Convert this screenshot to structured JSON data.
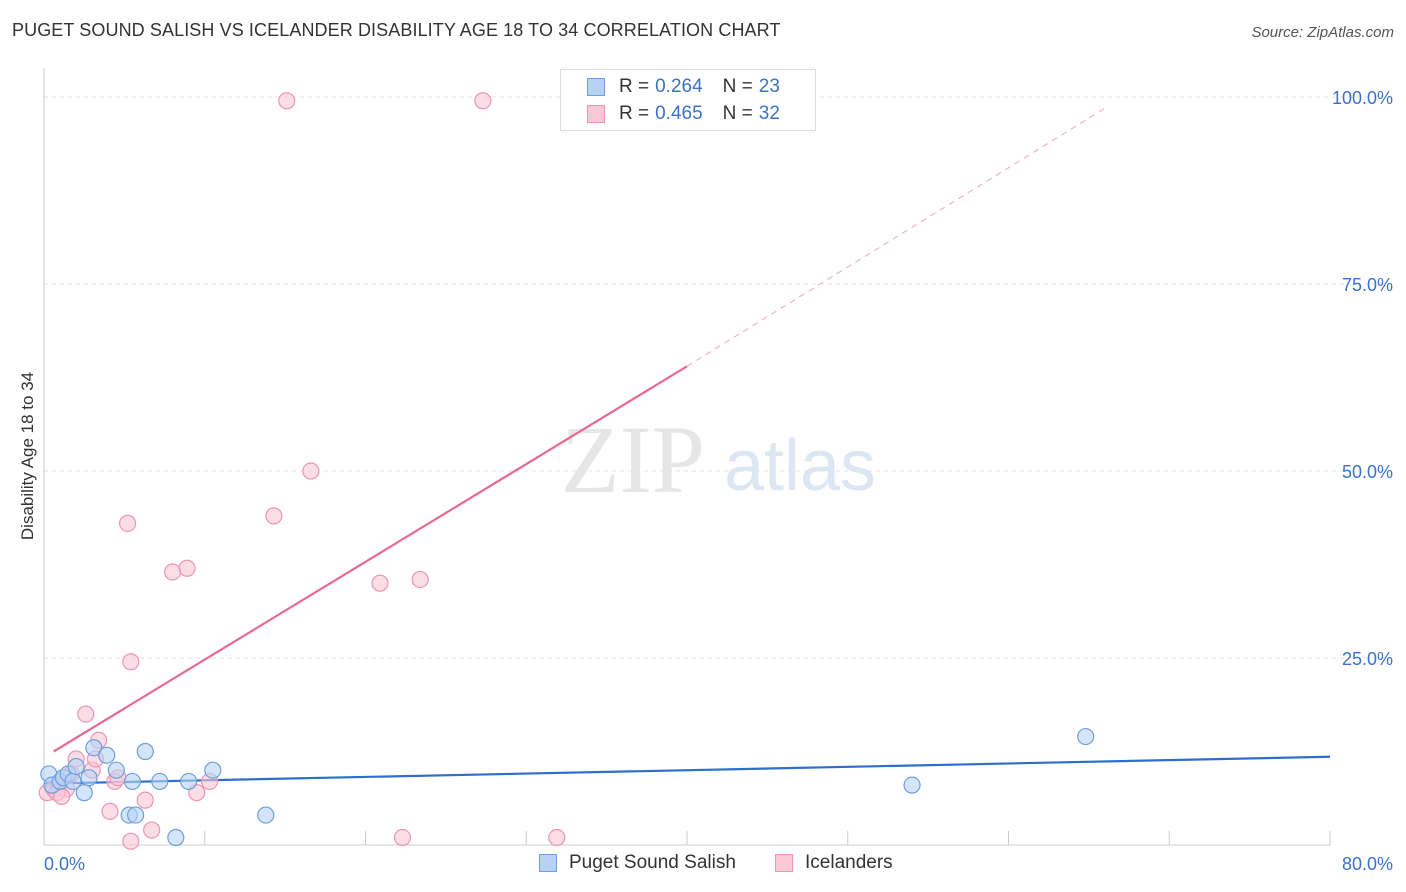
{
  "header": {
    "title": "PUGET SOUND SALISH VS ICELANDER DISABILITY AGE 18 TO 34 CORRELATION CHART",
    "source": "Source: ZipAtlas.com"
  },
  "watermark": {
    "zip": "ZIP",
    "atlas": "atlas"
  },
  "legend": {
    "rows": [
      {
        "r_label": "R = ",
        "r_value": "0.264",
        "n_label": "N = ",
        "n_value": "23",
        "fill": "#b8d2f5",
        "stroke": "#6f9fdc"
      },
      {
        "r_label": "R = ",
        "r_value": "0.465",
        "n_label": "N = ",
        "n_value": "32",
        "fill": "#f9c7d6",
        "stroke": "#ee95b2"
      }
    ]
  },
  "bottom_legend": [
    {
      "label": "Puget Sound Salish",
      "fill": "#b8d2f5",
      "stroke": "#6f9fdc"
    },
    {
      "label": "Icelanders",
      "fill": "#f9c7d6",
      "stroke": "#ee95b2"
    }
  ],
  "chart_data": {
    "type": "scatter",
    "title": "PUGET SOUND SALISH VS ICELANDER DISABILITY AGE 18 TO 34 CORRELATION CHART",
    "ylabel": "Disability Age 18 to 34",
    "xlabel": "",
    "xlim": [
      0,
      80
    ],
    "ylim": [
      0,
      100
    ],
    "x_ticks": [
      {
        "value": 0,
        "label": "0.0%"
      },
      {
        "value": 80,
        "label": "80.0%"
      }
    ],
    "y_ticks": [
      {
        "value": 25,
        "label": "25.0%"
      },
      {
        "value": 50,
        "label": "50.0%"
      },
      {
        "value": 75,
        "label": "75.0%"
      },
      {
        "value": 100,
        "label": "100.0%"
      }
    ],
    "grid": true,
    "legend_position": "top-center",
    "series": [
      {
        "name": "Puget Sound Salish",
        "color": "#6f9fdc",
        "fill": "#b8d2f5",
        "line_color": "#2f6fcb",
        "points": [
          [
            0.3,
            9.5
          ],
          [
            0.5,
            8.0
          ],
          [
            1.0,
            8.5
          ],
          [
            1.2,
            9.0
          ],
          [
            1.5,
            9.5
          ],
          [
            1.8,
            8.5
          ],
          [
            2.0,
            10.5
          ],
          [
            2.5,
            7.0
          ],
          [
            2.8,
            9.0
          ],
          [
            3.1,
            13.0
          ],
          [
            3.9,
            12.0
          ],
          [
            4.5,
            10.0
          ],
          [
            5.3,
            4.0
          ],
          [
            5.5,
            8.5
          ],
          [
            5.7,
            4.0
          ],
          [
            6.3,
            12.5
          ],
          [
            7.2,
            8.5
          ],
          [
            8.2,
            1.0
          ],
          [
            9.0,
            8.5
          ],
          [
            10.5,
            10.0
          ],
          [
            13.8,
            4.0
          ],
          [
            54.0,
            8.0
          ],
          [
            64.8,
            14.5
          ]
        ],
        "trend": {
          "x": [
            0,
            80
          ],
          "y": [
            8.2,
            11.8
          ]
        }
      },
      {
        "name": "Icelanders",
        "color": "#ee95b2",
        "fill": "#f9c7d6",
        "line_color": "#e86a93",
        "points": [
          [
            0.2,
            7.0
          ],
          [
            0.6,
            7.5
          ],
          [
            0.9,
            8.0
          ],
          [
            1.4,
            7.5
          ],
          [
            1.7,
            9.5
          ],
          [
            2.0,
            11.5
          ],
          [
            2.6,
            17.5
          ],
          [
            3.0,
            10.0
          ],
          [
            3.2,
            11.5
          ],
          [
            3.4,
            14.0
          ],
          [
            4.1,
            4.5
          ],
          [
            4.4,
            8.5
          ],
          [
            4.6,
            9.0
          ],
          [
            5.4,
            0.5
          ],
          [
            6.3,
            6.0
          ],
          [
            6.7,
            2.0
          ],
          [
            5.2,
            43.0
          ],
          [
            5.4,
            24.5
          ],
          [
            8.0,
            36.5
          ],
          [
            8.9,
            37.0
          ],
          [
            9.5,
            7.0
          ],
          [
            10.3,
            8.5
          ],
          [
            14.3,
            44.0
          ],
          [
            15.1,
            99.5
          ],
          [
            16.6,
            50.0
          ],
          [
            20.9,
            35.0
          ],
          [
            22.3,
            1.0
          ],
          [
            23.4,
            35.5
          ],
          [
            27.3,
            99.5
          ],
          [
            31.9,
            1.0
          ],
          [
            0.8,
            7.0
          ],
          [
            1.1,
            6.5
          ]
        ],
        "trend": {
          "x": [
            0.6,
            40.0
          ],
          "y": [
            12.5,
            64.0
          ]
        },
        "trend_extension": {
          "x": [
            40.0,
            66.0
          ],
          "y": [
            64.0,
            98.5
          ]
        }
      }
    ]
  }
}
